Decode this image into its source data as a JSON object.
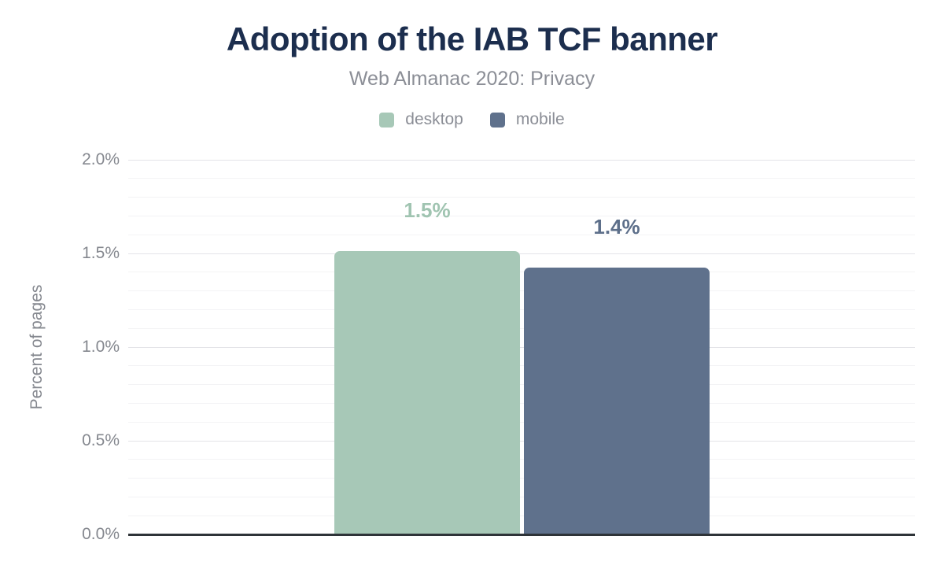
{
  "chart": {
    "title": "Adoption of the IAB TCF banner",
    "subtitle": "Web Almanac 2020: Privacy",
    "ylabel": "Percent of pages"
  },
  "chart_data": {
    "type": "bar",
    "title": "Adoption of the IAB TCF banner",
    "subtitle": "Web Almanac 2020: Privacy",
    "xlabel": "",
    "ylabel": "Percent of pages",
    "ylim": [
      0,
      2.0
    ],
    "yticks": [
      {
        "value": 2.0,
        "label": "2.0%"
      },
      {
        "value": 1.5,
        "label": "1.5%"
      },
      {
        "value": 1.0,
        "label": "1.0%"
      },
      {
        "value": 0.5,
        "label": "0.5%"
      },
      {
        "value": 0.0,
        "label": "0.0%"
      }
    ],
    "grid": {
      "on": true,
      "minor_step": 0.1,
      "major_step": 0.5
    },
    "legend_position": "top",
    "series": [
      {
        "name": "desktop",
        "value": 1.51,
        "label": "1.5%",
        "color": "#a7c8b7",
        "label_color": "#a0c4b1"
      },
      {
        "name": "mobile",
        "value": 1.42,
        "label": "1.4%",
        "color": "#5f718c",
        "label_color": "#5d6f8a"
      }
    ]
  },
  "colors": {
    "title": "#1c2e4e",
    "muted_text": "#8b8e96",
    "axis_text": "#85888f",
    "axis_line": "#2e3338",
    "grid_major": "#e4e4e8",
    "grid_minor": "#f3f3f5",
    "background": "#ffffff"
  }
}
